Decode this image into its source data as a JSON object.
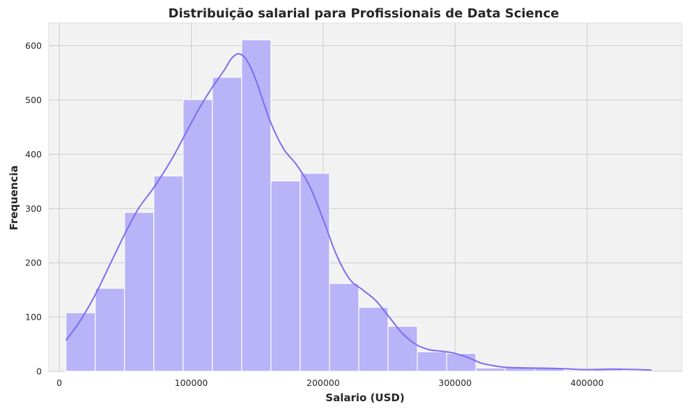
{
  "chart_data": {
    "type": "bar",
    "subtype": "histogram",
    "title": "Distribuição salarial para Profissionais de Data Science",
    "xlabel": "Salario (USD)",
    "ylabel": "Frequencia",
    "xlim": [
      -8000,
      472000
    ],
    "ylim": [
      0,
      642
    ],
    "xticks": [
      0,
      100000,
      200000,
      300000,
      400000
    ],
    "yticks": [
      0,
      100,
      200,
      300,
      400,
      500,
      600
    ],
    "grid": true,
    "legend": "none",
    "colors": {
      "bar_fill": "#b9b3f8",
      "bar_edge": "#ffffff",
      "kde_line": "#7b6cf0",
      "plot_bg": "#f2f2f2",
      "grid": "#cccccc",
      "text": "#262626"
    },
    "bins": [
      {
        "x0": 5000,
        "x1": 27200,
        "count": 108
      },
      {
        "x0": 27200,
        "x1": 49400,
        "count": 153
      },
      {
        "x0": 49400,
        "x1": 71600,
        "count": 293
      },
      {
        "x0": 71600,
        "x1": 93800,
        "count": 360
      },
      {
        "x0": 93800,
        "x1": 116000,
        "count": 501
      },
      {
        "x0": 116000,
        "x1": 138200,
        "count": 542
      },
      {
        "x0": 138200,
        "x1": 160400,
        "count": 611
      },
      {
        "x0": 160400,
        "x1": 182600,
        "count": 351
      },
      {
        "x0": 182600,
        "x1": 204800,
        "count": 365
      },
      {
        "x0": 204800,
        "x1": 227000,
        "count": 162
      },
      {
        "x0": 227000,
        "x1": 249200,
        "count": 118
      },
      {
        "x0": 249200,
        "x1": 271400,
        "count": 83
      },
      {
        "x0": 271400,
        "x1": 293600,
        "count": 36
      },
      {
        "x0": 293600,
        "x1": 315800,
        "count": 33
      },
      {
        "x0": 315800,
        "x1": 338000,
        "count": 6
      },
      {
        "x0": 338000,
        "x1": 360200,
        "count": 7
      },
      {
        "x0": 360200,
        "x1": 382400,
        "count": 6
      },
      {
        "x0": 382400,
        "x1": 404600,
        "count": 2
      },
      {
        "x0": 404600,
        "x1": 426800,
        "count": 3
      },
      {
        "x0": 426800,
        "x1": 449000,
        "count": 2
      }
    ],
    "kde": {
      "x": [
        5000,
        15000,
        27000,
        40000,
        50000,
        60000,
        72000,
        85000,
        95000,
        105000,
        115000,
        125000,
        130000,
        135000,
        140000,
        145000,
        150000,
        160000,
        170000,
        180000,
        190000,
        200000,
        210000,
        220000,
        230000,
        240000,
        250000,
        260000,
        270000,
        280000,
        290000,
        300000,
        310000,
        320000,
        330000,
        340000,
        360000,
        380000,
        400000,
        420000,
        440000,
        449000
      ],
      "y": [
        57,
        90,
        140,
        205,
        255,
        300,
        340,
        390,
        435,
        480,
        520,
        555,
        575,
        585,
        580,
        560,
        530,
        460,
        410,
        380,
        340,
        280,
        215,
        170,
        150,
        130,
        100,
        70,
        50,
        40,
        37,
        33,
        25,
        15,
        10,
        7,
        6,
        5,
        3,
        4,
        3,
        2
      ]
    }
  }
}
